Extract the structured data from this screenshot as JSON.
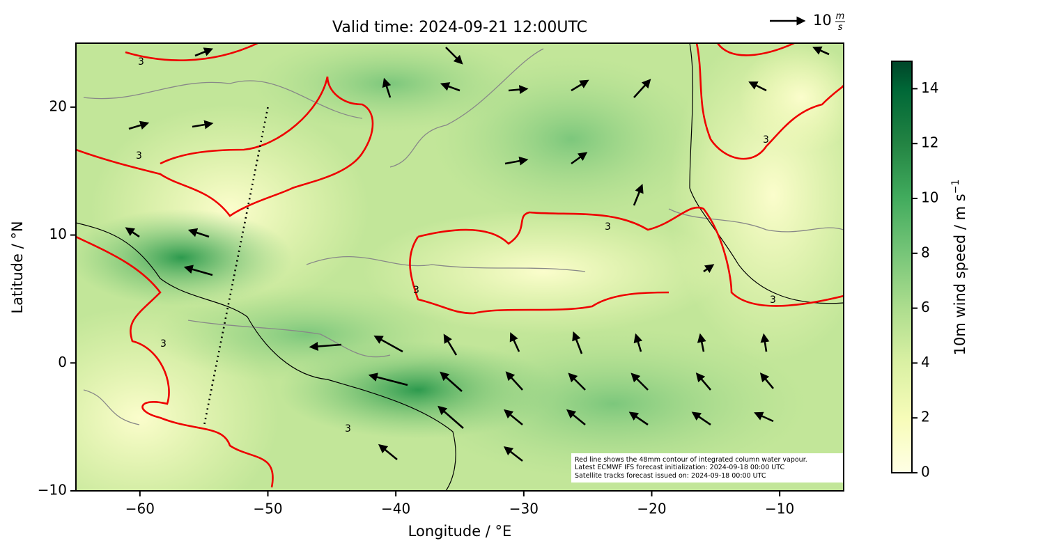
{
  "chart_data": {
    "type": "map",
    "title": "Valid time: 2024-09-21 12:00UTC",
    "xlabel": "Longitude / °E",
    "ylabel": "Latitude / °N",
    "xlim": [
      -65,
      -5
    ],
    "ylim": [
      -10,
      25
    ],
    "xticks": [
      {
        "value": -60,
        "label": "−60"
      },
      {
        "value": -50,
        "label": "−50"
      },
      {
        "value": -40,
        "label": "−40"
      },
      {
        "value": -30,
        "label": "−30"
      },
      {
        "value": -20,
        "label": "−20"
      },
      {
        "value": -10,
        "label": "−10"
      }
    ],
    "yticks": [
      {
        "value": -10,
        "label": "−10"
      },
      0,
      10,
      20
    ],
    "colorbar": {
      "label": "10m wind speed / m s",
      "label_exponent": "−1",
      "lim": [
        0,
        15
      ],
      "ticks": [
        0,
        2,
        4,
        6,
        8,
        10,
        12,
        14
      ]
    },
    "reference_vector": {
      "value": 10,
      "unit": [
        "m",
        "s"
      ]
    },
    "contour_label": "3",
    "annotation": [
      "Red line shows the 48mm contour of integrated column water vapour.",
      "Latest ECMWF IFS forecast initialization: 2024-09-18 00:00 UTC",
      "Satellite tracks forecast issued on: 2024-09-18 00:00 UTC"
    ]
  }
}
